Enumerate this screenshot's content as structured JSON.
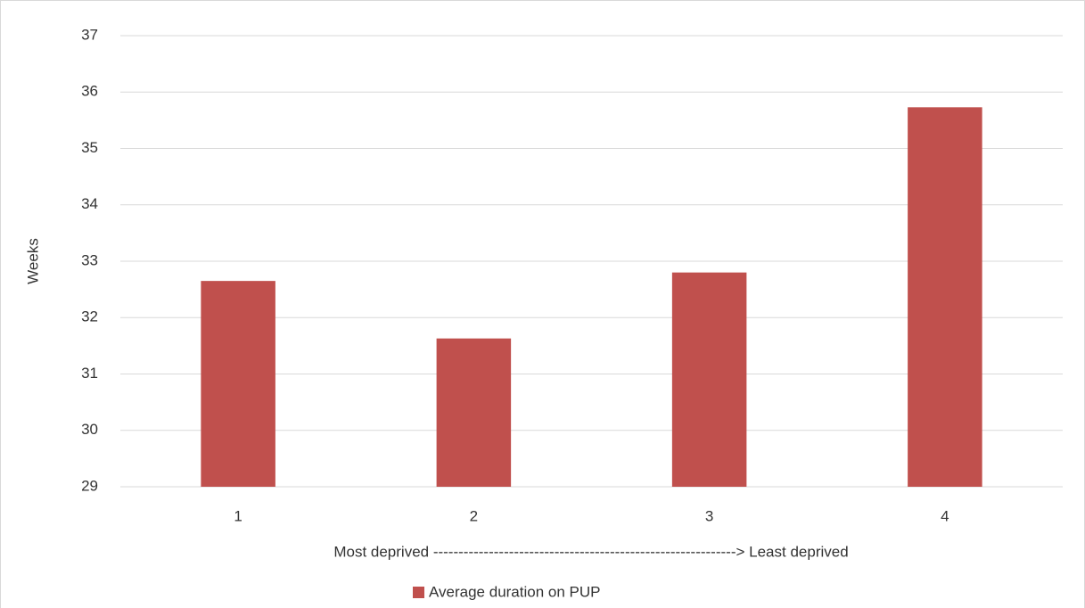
{
  "chart_data": {
    "type": "bar",
    "categories": [
      "1",
      "2",
      "3",
      "4"
    ],
    "series": [
      {
        "name": "Average duration on PUP",
        "color": "#c0504d",
        "values": [
          32.65,
          31.63,
          32.8,
          35.73
        ]
      }
    ],
    "y_label": "Weeks",
    "x_label": "Most deprived ------------------------------------------------------------> Least deprived",
    "ylim": [
      29,
      37
    ],
    "yticks": [
      29,
      30,
      31,
      32,
      33,
      34,
      35,
      36,
      37
    ],
    "grid": true,
    "legend": "bottom"
  }
}
